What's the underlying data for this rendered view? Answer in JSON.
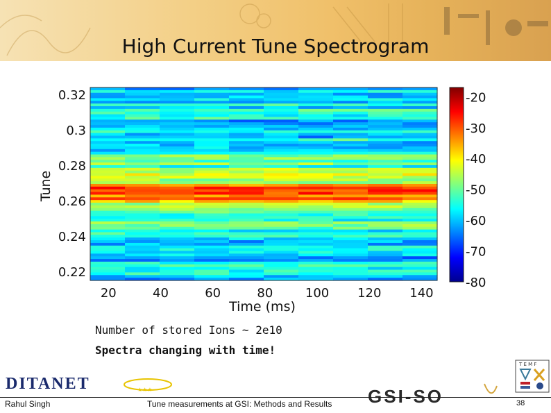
{
  "slide": {
    "title": "High Current Tune Spectrogram",
    "note_ions": "Number of stored Ions ~ 2e10",
    "note_spectra": "Spectra changing with time!",
    "footer_author": "Rahul Singh",
    "footer_talk": "Tune measurements at GSI: Methods and Results",
    "page_number": "38",
    "logos": {
      "left": "DITANET",
      "right": "GSI-SO"
    }
  },
  "colors": {
    "banner": "#f0c06a",
    "text": "#111111"
  },
  "chart_data": {
    "type": "heatmap",
    "title": "",
    "xlabel": "Time (ms)",
    "ylabel": "Tune",
    "xlim": [
      13,
      146
    ],
    "ylim": [
      0.215,
      0.324
    ],
    "x_ticks": [
      "20",
      "40",
      "60",
      "80",
      "100",
      "120",
      "140"
    ],
    "y_ticks": [
      "0.22",
      "0.24",
      "0.26",
      "0.28",
      "0.3",
      "0.32"
    ],
    "colorbar": {
      "min": -80,
      "max": -17,
      "ticks": [
        "-20",
        "-30",
        "-40",
        "-50",
        "-60",
        "-70",
        "-80"
      ],
      "colormap": "jet"
    },
    "peak_tune": 0.265,
    "peak_level": -22,
    "background_level": -58,
    "grid": false
  }
}
